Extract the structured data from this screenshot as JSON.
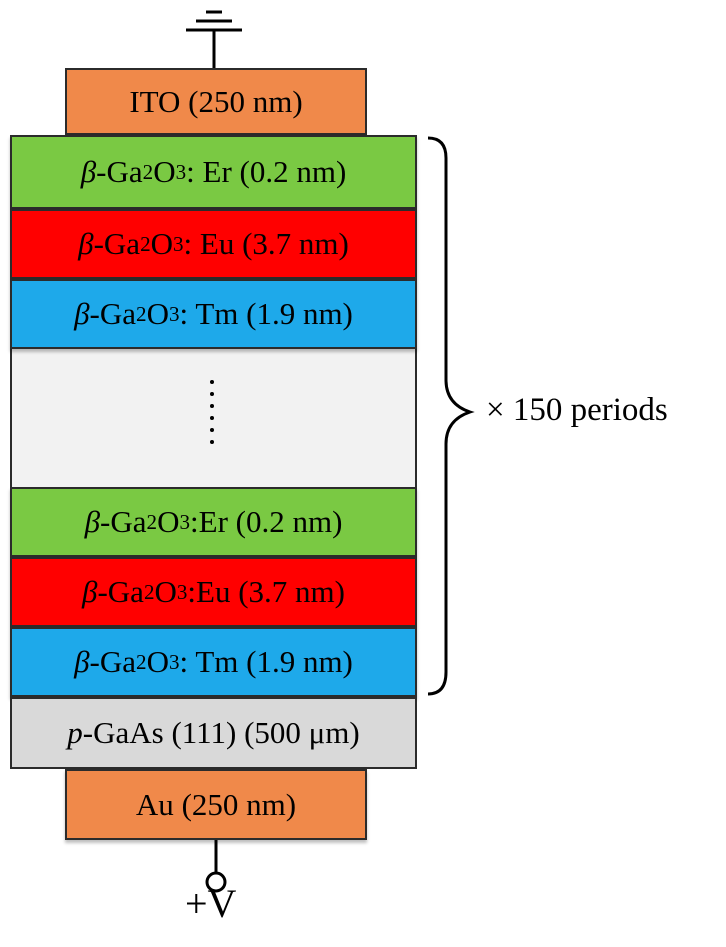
{
  "diagram": {
    "top_electrode": {
      "name": "ITO",
      "thickness": "(250 nm)"
    },
    "repeated_layers": [
      {
        "prefix": "β",
        "formula_pre": "-Ga",
        "sub1": "2",
        "mid": "O",
        "sub2": "3",
        "dopant": ": Er (0.2 nm)",
        "color": "#7ac943"
      },
      {
        "prefix": "β",
        "formula_pre": "-Ga",
        "sub1": "2",
        "mid": "O",
        "sub2": "3",
        "dopant": ": Eu (3.7 nm)",
        "color": "#ff0000"
      },
      {
        "prefix": "β",
        "formula_pre": "-Ga",
        "sub1": "2",
        "mid": "O",
        "sub2": "3",
        "dopant": ": Tm (1.9 nm)",
        "color": "#1ea9ea"
      },
      {
        "prefix": "β",
        "formula_pre": "-Ga",
        "sub1": "2",
        "mid": "O",
        "sub2": "3",
        "dopant": ":Er (0.2 nm)",
        "color": "#7ac943"
      },
      {
        "prefix": "β",
        "formula_pre": "-Ga",
        "sub1": "2",
        "mid": "O",
        "sub2": "3",
        "dopant": ":Eu (3.7 nm)",
        "color": "#ff0000"
      },
      {
        "prefix": "β",
        "formula_pre": "-Ga",
        "sub1": "2",
        "mid": "O",
        "sub2": "3",
        "dopant": ": Tm (1.9 nm)",
        "color": "#1ea9ea"
      }
    ],
    "substrate": {
      "prefix": "p",
      "rest": "-GaAs (111) (500 μm)",
      "color": "#d9d9d9"
    },
    "bottom_electrode": {
      "name": "Au",
      "thickness": "(250 nm)"
    },
    "periods_label": "× 150 periods",
    "bias_label": "+V",
    "electrode_color": "#f0894a"
  }
}
